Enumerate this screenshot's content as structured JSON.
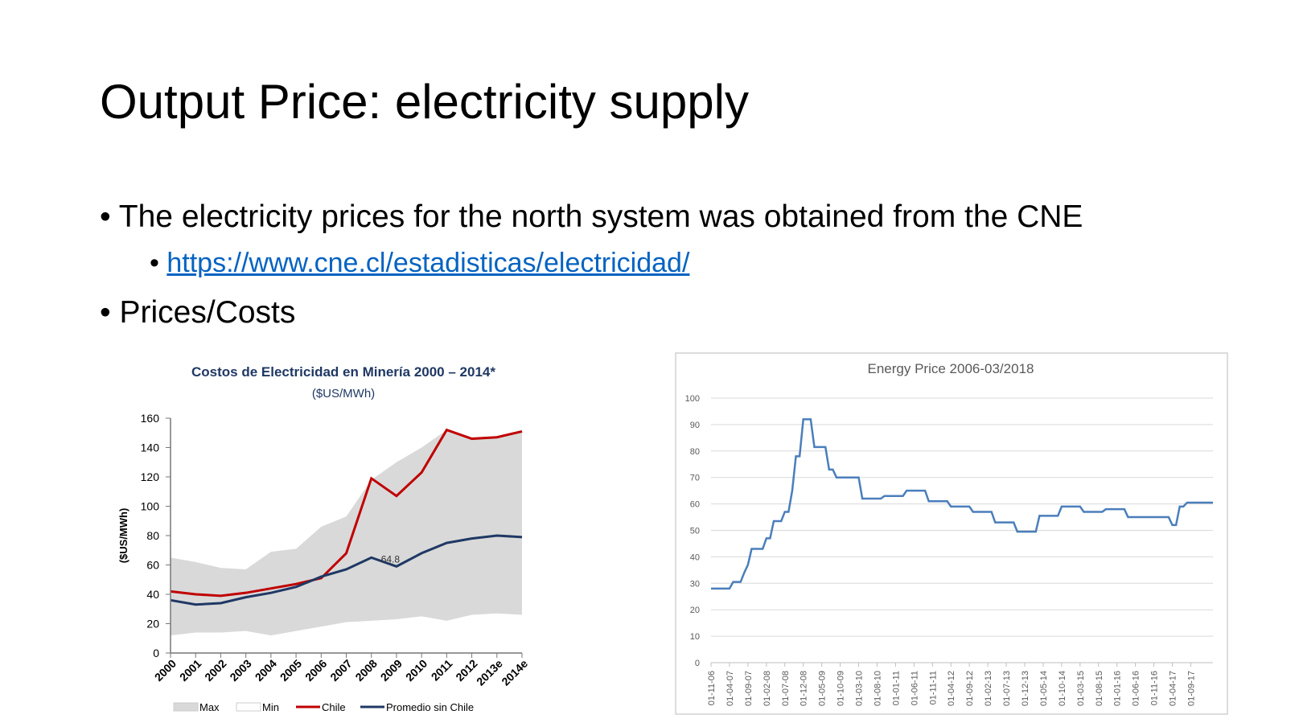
{
  "title": "Output Price: electricity supply",
  "bullets": [
    {
      "text": "The electricity prices for the north system was obtained from the CNE",
      "sub": [
        "https://www.cne.cl/estadisticas/electricidad/"
      ]
    },
    {
      "text": "Prices/Costs"
    }
  ],
  "chart_data": [
    {
      "type": "area",
      "title": "Costos de Electricidad en Minería 2000 – 2014*",
      "subtitle": "($US/MWh)",
      "y_label": "($US/MWh)",
      "annotation": "64.8",
      "categories": [
        "2000",
        "2001",
        "2002",
        "2003",
        "2004",
        "2005",
        "2006",
        "2007",
        "2008",
        "2009",
        "2010",
        "2011",
        "2012",
        "2013e",
        "2014e"
      ],
      "ylim": [
        0,
        160
      ],
      "yticks": [
        0,
        20,
        40,
        60,
        80,
        100,
        120,
        140,
        160
      ],
      "series": [
        {
          "name": "Max",
          "style": "area",
          "color": "#d9d9d9",
          "values": [
            65,
            62,
            58,
            57,
            69,
            71,
            86,
            93,
            118,
            130,
            140,
            152,
            146,
            147,
            151
          ]
        },
        {
          "name": "Min",
          "style": "area",
          "color": "#ffffff",
          "values": [
            12,
            14,
            14,
            15,
            12,
            15,
            18,
            21,
            22,
            23,
            25,
            22,
            26,
            27,
            26
          ]
        },
        {
          "name": "Chile",
          "style": "line",
          "color": "#c00000",
          "values": [
            42,
            40,
            39,
            41,
            44,
            47,
            51,
            68,
            119,
            107,
            123,
            152,
            146,
            147,
            151
          ]
        },
        {
          "name": "Promedio sin Chile",
          "style": "line",
          "color": "#1f3864",
          "values": [
            36,
            33,
            34,
            38,
            41,
            45,
            52,
            57,
            65,
            59,
            68,
            75,
            78,
            80,
            79
          ]
        }
      ]
    },
    {
      "type": "line",
      "title": "Energy Price 2006-03/2018",
      "grid": true,
      "color": "#4a7ebb",
      "ylim": [
        0,
        100
      ],
      "yticks": [
        0,
        10,
        20,
        30,
        40,
        50,
        60,
        70,
        80,
        90,
        100
      ],
      "categories": [
        "01-11-06",
        null,
        null,
        null,
        null,
        "01-04-07",
        null,
        null,
        null,
        null,
        "01-09-07",
        null,
        null,
        null,
        null,
        "01-02-08",
        null,
        null,
        null,
        null,
        "01-07-08",
        null,
        null,
        null,
        null,
        "01-12-08",
        null,
        null,
        null,
        null,
        "01-05-09",
        null,
        null,
        null,
        null,
        "01-10-09",
        null,
        null,
        null,
        null,
        "01-03-10",
        null,
        null,
        null,
        null,
        "01-08-10",
        null,
        null,
        null,
        null,
        "01-01-11",
        null,
        null,
        null,
        null,
        "01-06-11",
        null,
        null,
        null,
        null,
        "01-11-11",
        null,
        null,
        null,
        null,
        "01-04-12",
        null,
        null,
        null,
        null,
        "01-09-12",
        null,
        null,
        null,
        null,
        "01-02-13",
        null,
        null,
        null,
        null,
        "01-07-13",
        null,
        null,
        null,
        null,
        "01-12-13",
        null,
        null,
        null,
        null,
        "01-05-14",
        null,
        null,
        null,
        null,
        "01-10-14",
        null,
        null,
        null,
        null,
        "01-03-15",
        null,
        null,
        null,
        null,
        "01-08-15",
        null,
        null,
        null,
        null,
        "01-01-16",
        null,
        null,
        null,
        null,
        "01-06-16",
        null,
        null,
        null,
        null,
        "01-11-16",
        null,
        null,
        null,
        null,
        "01-04-17",
        null,
        null,
        null,
        null,
        "01-09-17",
        null,
        null,
        null,
        null,
        null,
        null
      ],
      "values": [
        28,
        28,
        28,
        28,
        28,
        28,
        30.5,
        30.5,
        30.5,
        34,
        37,
        43,
        43,
        43,
        43,
        47,
        47,
        53.5,
        53.5,
        53.5,
        57,
        57,
        65,
        78,
        78,
        92,
        92,
        92,
        81.5,
        81.5,
        81.5,
        81.5,
        73,
        73,
        70,
        70,
        70,
        70,
        70,
        70,
        70,
        62,
        62,
        62,
        62,
        62,
        62,
        63,
        63,
        63,
        63,
        63,
        63,
        65,
        65,
        65,
        65,
        65,
        65,
        61,
        61,
        61,
        61,
        61,
        61,
        59,
        59,
        59,
        59,
        59,
        59,
        57,
        57,
        57,
        57,
        57,
        57,
        53,
        53,
        53,
        53,
        53,
        53,
        49.5,
        49.5,
        49.5,
        49.5,
        49.5,
        49.5,
        55.5,
        55.5,
        55.5,
        55.5,
        55.5,
        55.5,
        59,
        59,
        59,
        59,
        59,
        59,
        57,
        57,
        57,
        57,
        57,
        57,
        58,
        58,
        58,
        58,
        58,
        58,
        55,
        55,
        55,
        55,
        55,
        55,
        55,
        55,
        55,
        55,
        55,
        55,
        52,
        52,
        59,
        59,
        60.5,
        60.5,
        60.5,
        60.5,
        60.5,
        60.5,
        60.5,
        60.5
      ]
    }
  ]
}
